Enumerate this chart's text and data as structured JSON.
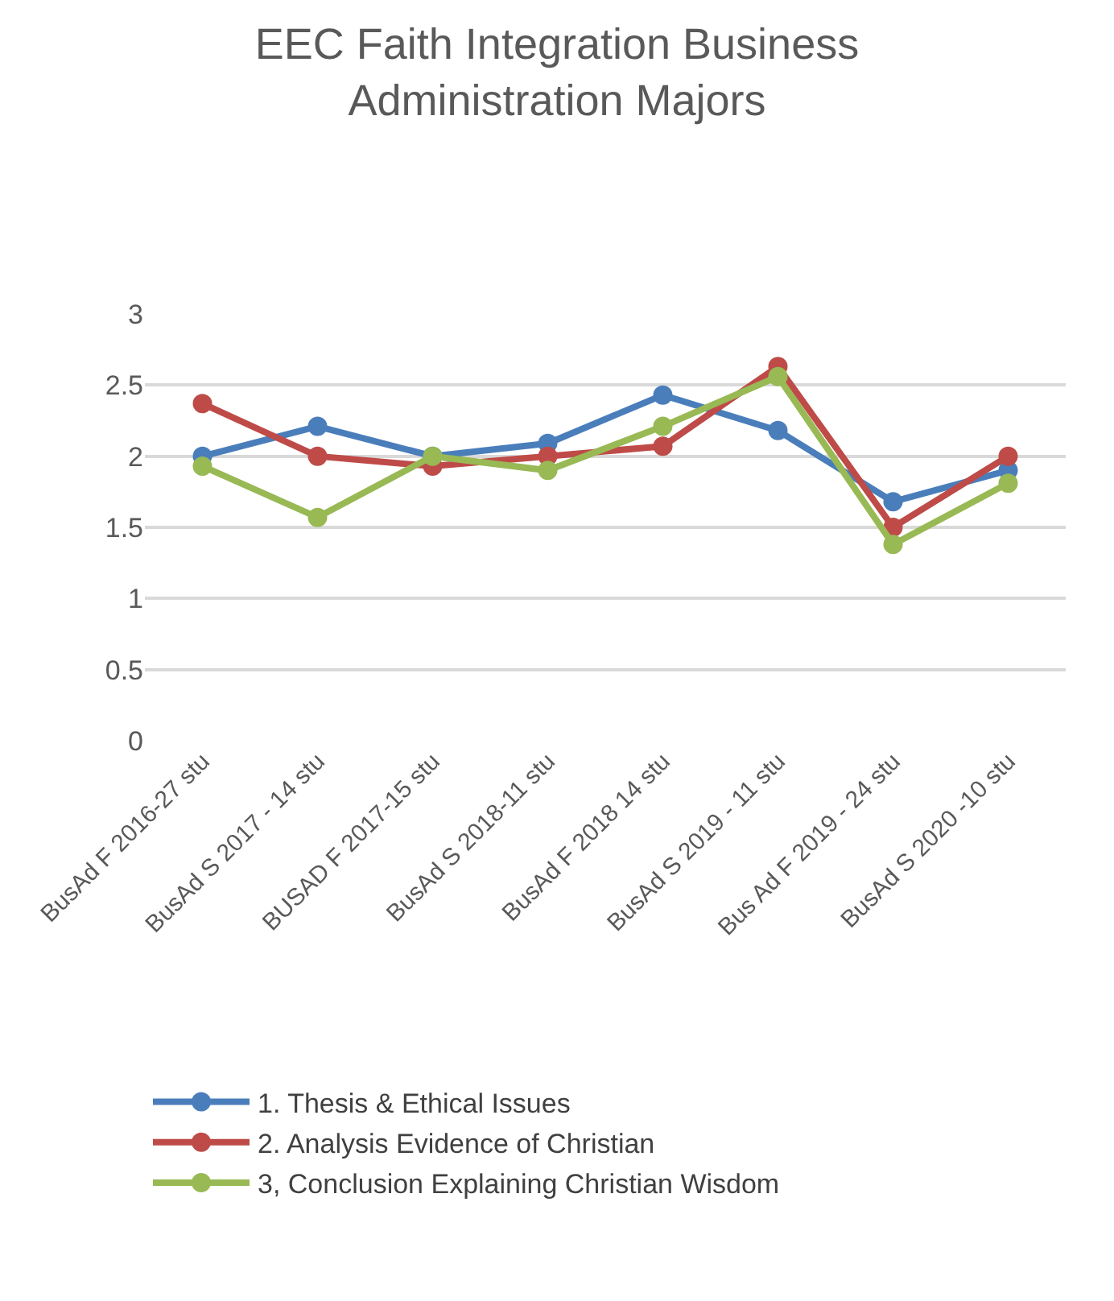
{
  "chart_data": {
    "type": "line",
    "title": "EEC Faith Integration Business Administration Majors",
    "categories": [
      "BusAd F 2016-27 stu",
      "BusAd S 2017 - 14 stu",
      "BUSAD F 2017-15 stu",
      "BusAd S 2018-11 stu",
      "BusAd F 2018 14 stu",
      "BusAd S 2019 - 11 stu",
      "Bus Ad F 2019 - 24 stu",
      "BusAd S 2020 -10 stu"
    ],
    "series": [
      {
        "name": "1. Thesis & Ethical Issues",
        "color": "#4a7ebb",
        "values": [
          2.0,
          2.21,
          2.0,
          2.09,
          2.43,
          2.18,
          1.68,
          1.9
        ]
      },
      {
        "name": "2. Analysis Evidence of Christian",
        "color": "#be4b48",
        "values": [
          2.37,
          2.0,
          1.93,
          2.0,
          2.07,
          2.63,
          1.5,
          2.0
        ]
      },
      {
        "name": "3, Conclusion Explaining Christian Wisdom",
        "color": "#98b954",
        "values": [
          1.93,
          1.57,
          2.0,
          1.9,
          2.21,
          2.56,
          1.38,
          1.81
        ]
      }
    ],
    "ylim": [
      0,
      3
    ],
    "yticks": [
      0,
      0.5,
      1,
      1.5,
      2,
      2.5,
      3
    ],
    "grid": "y",
    "legend": "bottom",
    "marker": "circle",
    "line_style": "solid"
  }
}
